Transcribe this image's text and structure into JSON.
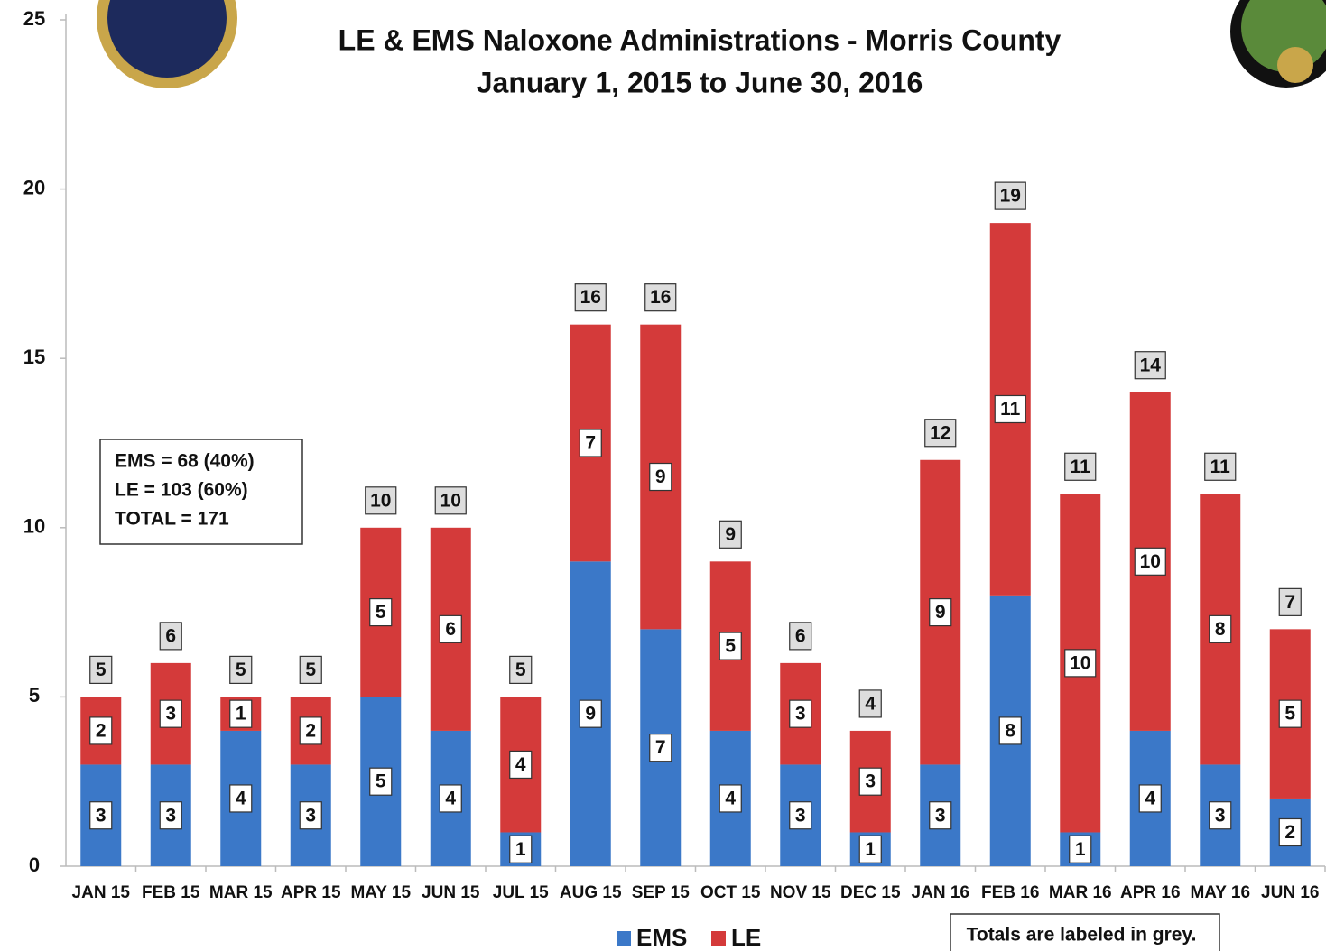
{
  "chart_data": {
    "type": "stacked_bar",
    "title": "LE & EMS Naloxone Administrations - Morris County",
    "subtitle": "January 1, 2015 to June 30, 2016",
    "categories": [
      "JAN 15",
      "FEB 15",
      "MAR 15",
      "APR 15",
      "MAY 15",
      "JUN 15",
      "JUL 15",
      "AUG 15",
      "SEP 15",
      "OCT 15",
      "NOV 15",
      "DEC 15",
      "JAN 16",
      "FEB 16",
      "MAR 16",
      "APR 16",
      "MAY 16",
      "JUN 16"
    ],
    "series": [
      {
        "name": "EMS",
        "color": "#3b78c8",
        "values": [
          3,
          3,
          4,
          3,
          5,
          4,
          1,
          9,
          7,
          4,
          3,
          1,
          3,
          8,
          1,
          4,
          3,
          2
        ]
      },
      {
        "name": "LE",
        "color": "#d43a3a",
        "values": [
          2,
          3,
          1,
          2,
          5,
          6,
          4,
          7,
          9,
          5,
          3,
          3,
          9,
          11,
          10,
          10,
          8,
          5
        ]
      }
    ],
    "totals": [
      5,
      6,
      5,
      5,
      10,
      10,
      5,
      16,
      16,
      9,
      6,
      4,
      12,
      19,
      11,
      14,
      11,
      7
    ],
    "ylim": [
      0,
      25
    ],
    "yticks": [
      0,
      5,
      10,
      15,
      20,
      25
    ],
    "summary": [
      "EMS = 68 (40%)",
      "LE = 103 (60%)",
      "TOTAL = 171"
    ],
    "note": "Totals are labeled in grey.",
    "legend": "bottom"
  }
}
